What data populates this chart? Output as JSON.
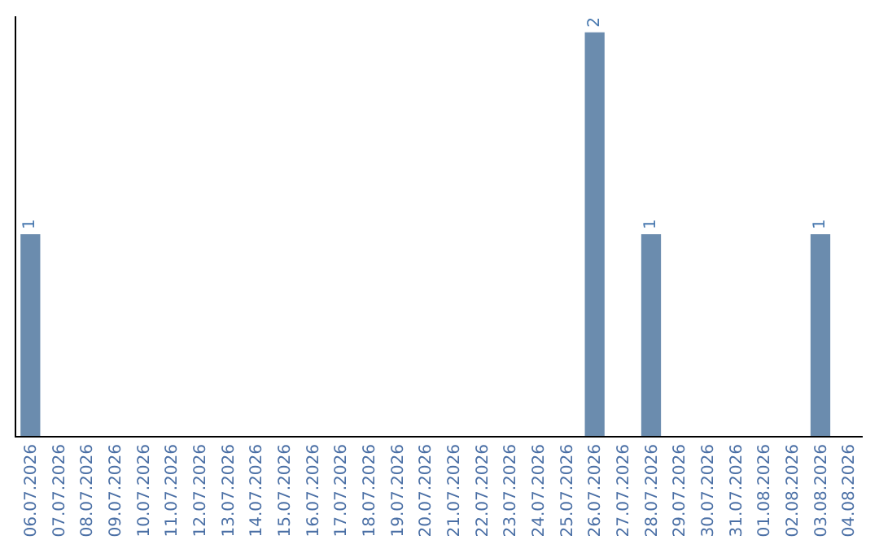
{
  "chart_data": {
    "type": "bar",
    "categories": [
      "06.07.2026",
      "07.07.2026",
      "08.07.2026",
      "09.07.2026",
      "10.07.2026",
      "11.07.2026",
      "12.07.2026",
      "13.07.2026",
      "14.07.2026",
      "15.07.2026",
      "16.07.2026",
      "17.07.2026",
      "18.07.2026",
      "19.07.2026",
      "20.07.2026",
      "21.07.2026",
      "22.07.2026",
      "23.07.2026",
      "24.07.2026",
      "25.07.2026",
      "26.07.2026",
      "27.07.2026",
      "28.07.2026",
      "29.07.2026",
      "30.07.2026",
      "31.07.2026",
      "01.08.2026",
      "02.08.2026",
      "03.08.2026",
      "04.08.2026"
    ],
    "values": [
      1,
      null,
      null,
      null,
      null,
      null,
      null,
      null,
      null,
      null,
      null,
      null,
      null,
      null,
      null,
      null,
      null,
      null,
      null,
      null,
      2,
      null,
      1,
      null,
      null,
      null,
      null,
      null,
      1,
      null
    ],
    "color": "#6b8cae",
    "ylim": [
      0,
      2.08
    ],
    "data_labels": true,
    "tick_labels": "x"
  }
}
